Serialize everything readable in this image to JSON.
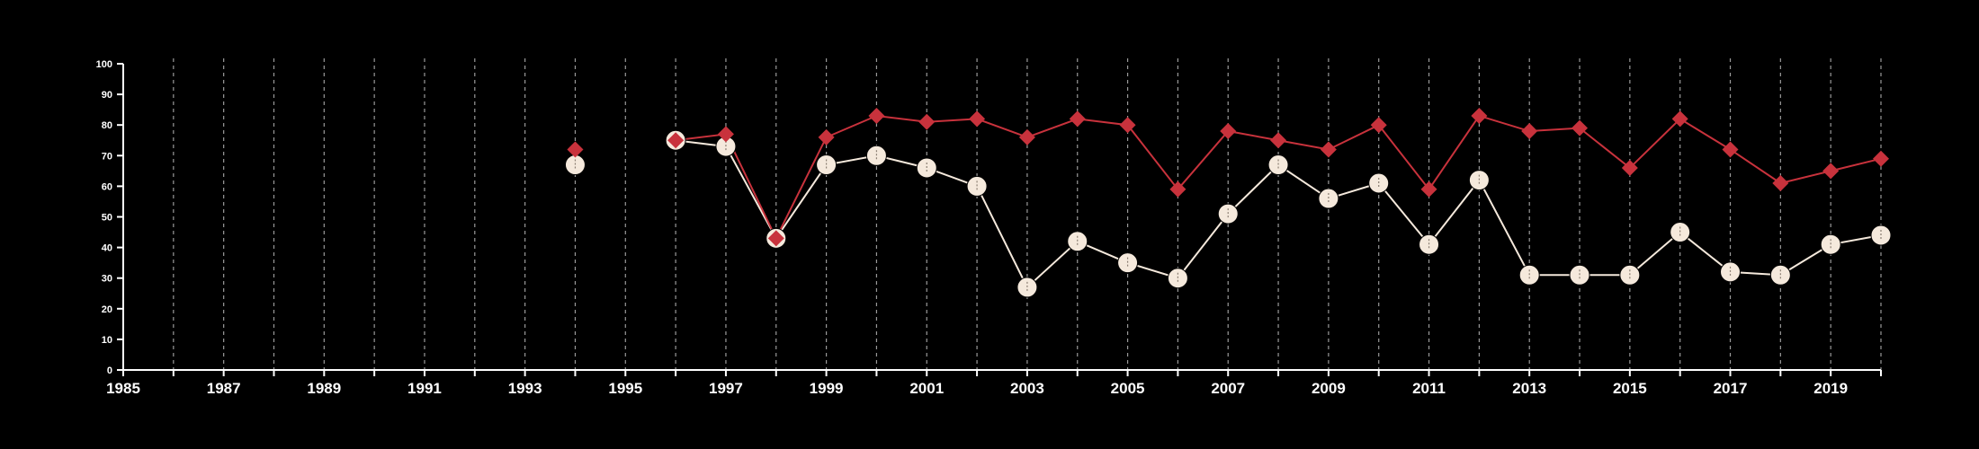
{
  "chart_data": {
    "type": "line",
    "x_ticks": [
      "1985",
      "1987",
      "1989",
      "1991",
      "1993",
      "1995",
      "1997",
      "1999",
      "2001",
      "2003",
      "2005",
      "2007",
      "2009",
      "2011",
      "2013",
      "2015",
      "2017",
      "2019"
    ],
    "y_ticks": [
      "0",
      "10",
      "20",
      "30",
      "40",
      "50",
      "60",
      "70",
      "80",
      "90",
      "100"
    ],
    "xlim": [
      1985,
      2020
    ],
    "ylim": [
      0,
      100
    ],
    "grid": "vertical dashed lines at each year",
    "series": [
      {
        "marker": "diamond",
        "color": "#c8323c",
        "points": [
          {
            "x": 1994,
            "y": 72
          },
          {
            "x": 1996,
            "y": 75
          },
          {
            "x": 1997,
            "y": 77
          },
          {
            "x": 1998,
            "y": 43
          },
          {
            "x": 1999,
            "y": 76
          },
          {
            "x": 2000,
            "y": 83
          },
          {
            "x": 2001,
            "y": 81
          },
          {
            "x": 2002,
            "y": 82
          },
          {
            "x": 2003,
            "y": 76
          },
          {
            "x": 2004,
            "y": 82
          },
          {
            "x": 2005,
            "y": 80
          },
          {
            "x": 2006,
            "y": 59
          },
          {
            "x": 2007,
            "y": 78
          },
          {
            "x": 2008,
            "y": 75
          },
          {
            "x": 2009,
            "y": 72
          },
          {
            "x": 2010,
            "y": 80
          },
          {
            "x": 2011,
            "y": 59
          },
          {
            "x": 2012,
            "y": 83
          },
          {
            "x": 2013,
            "y": 78
          },
          {
            "x": 2014,
            "y": 79
          },
          {
            "x": 2015,
            "y": 66
          },
          {
            "x": 2016,
            "y": 82
          },
          {
            "x": 2017,
            "y": 72
          },
          {
            "x": 2018,
            "y": 61
          },
          {
            "x": 2019,
            "y": 65
          },
          {
            "x": 2020,
            "y": 69
          }
        ]
      },
      {
        "marker": "circle",
        "color": "#f5e9dc",
        "points": [
          {
            "x": 1994,
            "y": 67
          },
          {
            "x": 1996,
            "y": 75
          },
          {
            "x": 1997,
            "y": 73
          },
          {
            "x": 1998,
            "y": 43
          },
          {
            "x": 1999,
            "y": 67
          },
          {
            "x": 2000,
            "y": 70
          },
          {
            "x": 2001,
            "y": 66
          },
          {
            "x": 2002,
            "y": 60
          },
          {
            "x": 2003,
            "y": 27
          },
          {
            "x": 2004,
            "y": 42
          },
          {
            "x": 2005,
            "y": 35
          },
          {
            "x": 2006,
            "y": 30
          },
          {
            "x": 2007,
            "y": 51
          },
          {
            "x": 2008,
            "y": 67
          },
          {
            "x": 2009,
            "y": 56
          },
          {
            "x": 2010,
            "y": 61
          },
          {
            "x": 2011,
            "y": 41
          },
          {
            "x": 2012,
            "y": 62
          },
          {
            "x": 2013,
            "y": 31
          },
          {
            "x": 2014,
            "y": 31
          },
          {
            "x": 2015,
            "y": 31
          },
          {
            "x": 2016,
            "y": 45
          },
          {
            "x": 2017,
            "y": 32
          },
          {
            "x": 2018,
            "y": 31
          },
          {
            "x": 2019,
            "y": 41
          },
          {
            "x": 2020,
            "y": 44
          }
        ]
      }
    ]
  }
}
